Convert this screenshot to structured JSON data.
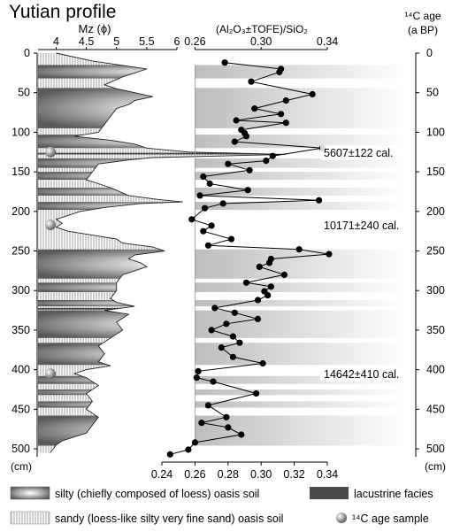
{
  "title": "Yutian profile",
  "chart_data": [
    {
      "type": "area",
      "panel": "grain size",
      "xlabel": "Mz (ϕ)",
      "xticks": [
        "4",
        "4.5",
        "5",
        "5.5",
        "6"
      ],
      "xlim": [
        3.7,
        6.0
      ],
      "ylabel": "(cm)",
      "ylim": [
        0,
        510
      ],
      "yticks": [
        "0",
        "50",
        "100",
        "150",
        "200",
        "250",
        "300",
        "350",
        "400",
        "450",
        "500"
      ],
      "depth": [
        0,
        10,
        20,
        30,
        40,
        45,
        55,
        60,
        65,
        70,
        80,
        90,
        100,
        105,
        110,
        115,
        120,
        125,
        128,
        132,
        135,
        140,
        150,
        160,
        165,
        170,
        180,
        185,
        188,
        190,
        195,
        200,
        205,
        210,
        215,
        220,
        225,
        230,
        235,
        240,
        245,
        250,
        255,
        260,
        265,
        270,
        280,
        290,
        300,
        310,
        315,
        320,
        325,
        330,
        340,
        350,
        360,
        370,
        380,
        390,
        395,
        400,
        405,
        410,
        420,
        430,
        440,
        450,
        460,
        470,
        480,
        485,
        490,
        495,
        500,
        505
      ],
      "mz": [
        4.0,
        4.6,
        5.5,
        5.1,
        4.8,
        5.0,
        5.6,
        5.3,
        5.2,
        5.0,
        4.9,
        4.8,
        4.7,
        4.3,
        4.9,
        5.3,
        5.5,
        6.2,
        7.8,
        5.6,
        5.2,
        4.7,
        4.6,
        4.5,
        4.7,
        4.9,
        5.2,
        5.7,
        6.1,
        5.4,
        4.8,
        4.4,
        4.2,
        4.0,
        4.1,
        4.0,
        4.2,
        4.6,
        5.0,
        5.1,
        5.6,
        5.8,
        5.3,
        5.2,
        5.4,
        5.5,
        5.1,
        5.0,
        5.0,
        4.9,
        5.0,
        5.3,
        4.8,
        5.2,
        5.0,
        5.1,
        4.9,
        4.7,
        4.8,
        4.7,
        4.9,
        4.5,
        4.3,
        4.5,
        4.7,
        4.5,
        4.6,
        4.5,
        4.7,
        4.6,
        4.5,
        4.3,
        4.1,
        4.0,
        3.95,
        3.9
      ]
    },
    {
      "type": "line",
      "panel": "ratio",
      "xlabel": "(Al₂O₃±TOFE)/SiO₂",
      "xticks_top": [
        "0.26",
        "0.30",
        "0.34"
      ],
      "xticks_bottom": [
        "0.24",
        "0.26",
        "0.28",
        "0.30",
        "0.32",
        "0.34"
      ],
      "xlim": [
        0.24,
        0.34
      ],
      "ylim": [
        0,
        510
      ],
      "depth": [
        12,
        20,
        24,
        36,
        52,
        60,
        70,
        77,
        85,
        88,
        97,
        101,
        105,
        112,
        120,
        130,
        136,
        140,
        148,
        156,
        165,
        173,
        180,
        186,
        190,
        196,
        210,
        218,
        225,
        235,
        243,
        248,
        254,
        260,
        265,
        270,
        280,
        290,
        295,
        301,
        306,
        312,
        322,
        328,
        336,
        342,
        350,
        358,
        366,
        372,
        384,
        392,
        402,
        410,
        415,
        430,
        445,
        460,
        467,
        473,
        482,
        492,
        501,
        507
      ],
      "ratio": [
        0.278,
        0.312,
        0.311,
        0.294,
        0.331,
        0.315,
        0.296,
        0.312,
        0.285,
        0.315,
        0.288,
        0.29,
        0.291,
        0.284,
        0.337,
        0.307,
        0.303,
        0.28,
        0.293,
        0.265,
        0.269,
        0.292,
        0.263,
        0.335,
        0.277,
        0.266,
        0.258,
        0.27,
        0.265,
        0.282,
        0.268,
        0.323,
        0.341,
        0.306,
        0.305,
        0.299,
        0.314,
        0.291,
        0.306,
        0.302,
        0.304,
        0.298,
        0.272,
        0.284,
        0.298,
        0.279,
        0.27,
        0.283,
        0.287,
        0.276,
        0.283,
        0.301,
        0.262,
        0.261,
        0.271,
        0.297,
        0.268,
        0.279,
        0.264,
        0.28,
        0.288,
        0.26,
        0.256,
        0.245
      ],
      "bottom_axis_label": "(cm)"
    },
    {
      "type": "table",
      "panel": "14C ages",
      "xlabel_line1": "¹⁴C age",
      "xlabel_line2": "(a BP)",
      "yticks": [
        "0",
        "50",
        "100",
        "150",
        "200",
        "250",
        "300",
        "350",
        "400",
        "450",
        "500"
      ],
      "ages": [
        {
          "depth": 125,
          "label": "5607±122 cal."
        },
        {
          "depth": 217,
          "label": "10171±240 cal."
        },
        {
          "depth": 405,
          "label": "14642±410 cal."
        }
      ]
    }
  ],
  "soil_units": {
    "silty": [
      [
        15,
        32
      ],
      [
        44,
        95
      ],
      [
        103,
        120
      ],
      [
        133,
        145
      ],
      [
        150,
        160
      ],
      [
        170,
        180
      ],
      [
        188,
        198
      ],
      [
        248,
        285
      ],
      [
        290,
        302
      ],
      [
        312,
        320
      ],
      [
        325,
        360
      ],
      [
        366,
        394
      ],
      [
        408,
        418
      ],
      [
        425,
        432
      ],
      [
        440,
        448
      ],
      [
        458,
        496
      ]
    ],
    "sandy": [
      [
        0,
        15
      ],
      [
        32,
        44
      ],
      [
        95,
        103
      ],
      [
        120,
        133
      ],
      [
        145,
        150
      ],
      [
        160,
        170
      ],
      [
        180,
        188
      ],
      [
        198,
        248
      ],
      [
        285,
        290
      ],
      [
        302,
        312
      ],
      [
        320,
        325
      ],
      [
        360,
        366
      ],
      [
        394,
        408
      ],
      [
        418,
        425
      ],
      [
        432,
        440
      ],
      [
        448,
        458
      ],
      [
        496,
        510
      ]
    ],
    "lacustrine": [
      [
        126,
        128
      ],
      [
        322,
        324
      ]
    ],
    "age_samples": [
      125,
      217,
      405
    ]
  },
  "legend": [
    {
      "key": "silty",
      "label": "silty (chiefly composed of loess) oasis soil"
    },
    {
      "key": "lacustrine",
      "label": "lacustrine facies"
    },
    {
      "key": "sandy",
      "label": "sandy (loess-like silty very fine sand) oasis soil"
    },
    {
      "key": "age",
      "label": "¹⁴C age sample"
    }
  ],
  "colors": {
    "line": "#000000",
    "band": "#c8c8c8",
    "dark": "#505050"
  }
}
